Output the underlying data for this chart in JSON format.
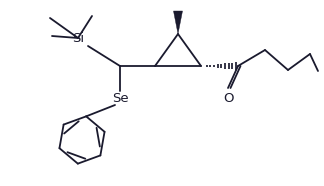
{
  "bg_color": "#ffffff",
  "line_color": "#1a1a2e",
  "line_width": 1.3,
  "figsize": [
    3.24,
    1.86
  ],
  "dpi": 100,
  "si_label": "Si",
  "se_label": "Se",
  "o_label": "O"
}
